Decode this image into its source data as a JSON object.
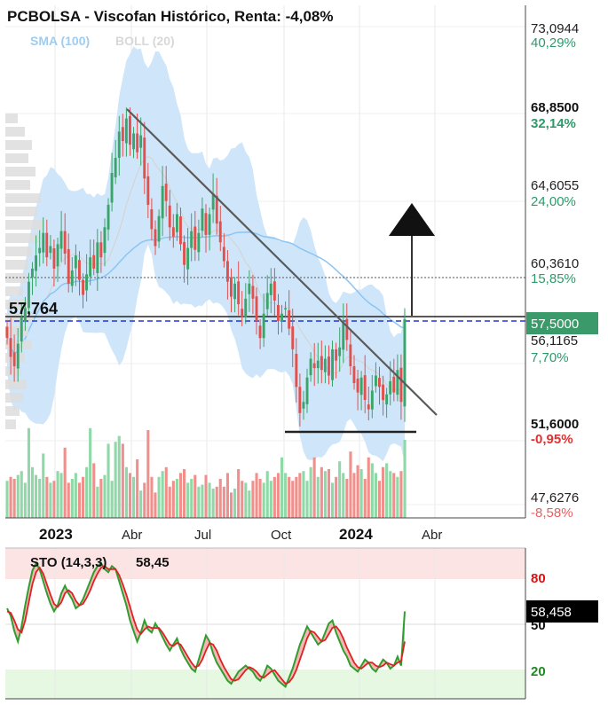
{
  "title": "PCBOLSA - Viscofan Histórico, Renta: -4,08%",
  "legend": {
    "sma": "SMA (100)",
    "boll": "BOLL (20)"
  },
  "colors": {
    "up": "#3aa56a",
    "down": "#e2504c",
    "bollinger_band": "#cfe6fa",
    "sma_line": "#8cc4f2",
    "trend_line": "#555555",
    "base_line": "#222222",
    "ref_dashed": "#2233dd",
    "current_line": "#222222",
    "vol_up": "#8fd8a8",
    "vol_down": "#f0908c",
    "sto_k": "#2f9e2f",
    "sto_d": "#dd2222",
    "sto_fill": "#f5b6b6",
    "sto_overbought": "#fde4e4",
    "sto_oversold": "#e6f8e2",
    "price_tag": "#3a9a6a",
    "sto_tag": "#000000"
  },
  "chart_data": [
    {
      "type": "candlestick",
      "x_ticks": [
        {
          "label": "2023",
          "date": "2023-01",
          "bold": true
        },
        {
          "label": "Abr",
          "date": "2023-04",
          "bold": false
        },
        {
          "label": "Jul",
          "date": "2023-07",
          "bold": false
        },
        {
          "label": "Oct",
          "date": "2023-10",
          "bold": false
        },
        {
          "label": "2024",
          "date": "2024-01",
          "bold": true
        },
        {
          "label": "Abr",
          "date": "2024-04",
          "bold": false
        }
      ],
      "y_ticks": [
        {
          "value": "73,0944",
          "pct": "40,29%",
          "pct_color": "#2e9a6a",
          "bold": false
        },
        {
          "value": "68,8500",
          "pct": "32,14%",
          "pct_color": "#2e9a6a",
          "bold": true
        },
        {
          "value": "64,6055",
          "pct": "24,00%",
          "pct_color": "#2e9a6a",
          "bold": false
        },
        {
          "value": "60,3610",
          "pct": "15,85%",
          "pct_color": "#2e9a6a",
          "bold": false
        },
        {
          "value": "56,1165",
          "pct": "7,70%",
          "pct_color": "#2e9a6a",
          "bold": false
        },
        {
          "value": "51,6000",
          "pct": "-0,95%",
          "pct_color": "#e23030",
          "bold": true
        },
        {
          "value": "47,6276",
          "pct": "-8,58%",
          "pct_color": "#e86060",
          "bold": false
        }
      ],
      "ylim": [
        47.6276,
        73.0944
      ],
      "last_price_tag": "57,5000",
      "reference_level_label": "57,764",
      "annotations": [
        "descending trendline",
        "horizontal support at 51,6000",
        "breakout arrow up"
      ],
      "close_series": [
        56.5,
        55.5,
        55.0,
        56.2,
        57.6,
        58.1,
        59.5,
        60.2,
        60.9,
        61.3,
        62.1,
        60.8,
        61.4,
        60.2,
        61.5,
        62.2,
        61.0,
        59.4,
        60.1,
        60.9,
        59.6,
        58.8,
        59.9,
        60.8,
        60.2,
        61.6,
        60.8,
        62.4,
        63.6,
        65.3,
        66.1,
        67.5,
        67.0,
        68.2,
        66.8,
        67.4,
        66.4,
        67.3,
        65.0,
        63.6,
        62.3,
        61.4,
        63.0,
        64.6,
        63.8,
        62.4,
        61.9,
        63.1,
        61.5,
        60.4,
        61.3,
        62.2,
        61.2,
        62.1,
        63.4,
        62.0,
        63.1,
        64.2,
        62.6,
        61.6,
        60.6,
        59.5,
        58.7,
        59.4,
        58.3,
        57.6,
        58.6,
        59.4,
        58.6,
        57.4,
        56.5,
        57.8,
        58.9,
        59.4,
        58.5,
        57.4,
        57.8,
        58.1,
        57.0,
        55.9,
        53.9,
        52.5,
        53.1,
        54.4,
        55.4,
        54.9,
        55.3,
        54.8,
        55.4,
        54.5,
        55.9,
        55.3,
        56.0,
        57.4,
        56.4,
        55.0,
        54.1,
        53.6,
        54.4,
        53.2,
        52.7,
        53.7,
        54.5,
        53.9,
        53.2,
        53.5,
        54.2,
        53.6,
        54.8,
        53.1,
        57.5
      ],
      "volume_series": [
        0.19,
        0.21,
        0.2,
        0.22,
        0.24,
        0.18,
        0.46,
        0.26,
        0.22,
        0.2,
        0.33,
        0.21,
        0.18,
        0.19,
        0.24,
        0.23,
        0.36,
        0.18,
        0.2,
        0.23,
        0.18,
        0.21,
        0.26,
        0.46,
        0.28,
        0.16,
        0.2,
        0.22,
        0.38,
        0.19,
        0.39,
        0.42,
        0.38,
        0.26,
        0.23,
        0.21,
        0.3,
        0.14,
        0.18,
        0.45,
        0.21,
        0.13,
        0.21,
        0.24,
        0.26,
        0.16,
        0.19,
        0.2,
        0.23,
        0.25,
        0.18,
        0.2,
        0.22,
        0.16,
        0.17,
        0.22,
        0.18,
        0.15,
        0.16,
        0.2,
        0.16,
        0.23,
        0.13,
        0.15,
        0.25,
        0.19,
        0.18,
        0.14,
        0.19,
        0.23,
        0.2,
        0.18,
        0.24,
        0.19,
        0.21,
        0.23,
        0.31,
        0.23,
        0.21,
        0.19,
        0.21,
        0.23,
        0.24,
        0.19,
        0.26,
        0.31,
        0.21,
        0.26,
        0.24,
        0.25,
        0.18,
        0.21,
        0.29,
        0.23,
        0.2,
        0.34,
        0.23,
        0.27,
        0.25,
        0.2,
        0.31,
        0.28,
        0.23,
        0.19,
        0.26,
        0.28,
        0.24,
        0.23,
        0.21,
        0.24,
        0.4
      ]
    },
    {
      "type": "line",
      "title": "STO (14,3,3)",
      "value_label": "58,45",
      "last_tag": "58,458",
      "ylim": [
        0,
        100
      ],
      "y_ticks": [
        {
          "value": "80",
          "color": "#dd1111"
        },
        {
          "value": "50",
          "color": "#111111"
        },
        {
          "value": "20",
          "color": "#1f8a1f"
        }
      ],
      "overbought": 80,
      "oversold": 20,
      "series": [
        {
          "values": [
            60,
            55,
            45,
            38,
            48,
            62,
            74,
            85,
            90,
            86,
            78,
            70,
            63,
            58,
            62,
            70,
            75,
            70,
            66,
            60,
            62,
            66,
            72,
            78,
            84,
            88,
            90,
            86,
            84,
            88,
            86,
            78,
            70,
            62,
            52,
            45,
            38,
            44,
            52,
            46,
            44,
            50,
            46,
            41,
            36,
            32,
            36,
            40,
            33,
            28,
            24,
            20,
            18,
            26,
            34,
            42,
            38,
            30,
            24,
            20,
            16,
            12,
            10,
            14,
            18,
            20,
            22,
            20,
            18,
            14,
            12,
            16,
            22,
            20,
            16,
            12,
            10,
            8,
            14,
            20,
            28,
            36,
            42,
            48,
            44,
            40,
            36,
            38,
            44,
            50,
            52,
            44,
            38,
            32,
            28,
            22,
            20,
            18,
            22,
            26,
            24,
            20,
            18,
            22,
            26,
            24,
            20,
            22,
            28,
            22,
            58
          ]
        },
        {
          "values": [
            58,
            57,
            52,
            46,
            44,
            52,
            64,
            76,
            84,
            87,
            83,
            76,
            69,
            63,
            61,
            64,
            70,
            72,
            70,
            65,
            62,
            63,
            67,
            72,
            78,
            83,
            87,
            88,
            86,
            86,
            86,
            82,
            76,
            69,
            61,
            53,
            46,
            43,
            46,
            48,
            47,
            47,
            47,
            44,
            40,
            36,
            35,
            37,
            36,
            32,
            28,
            24,
            21,
            22,
            26,
            32,
            37,
            36,
            32,
            26,
            21,
            17,
            13,
            12,
            13,
            16,
            19,
            21,
            20,
            18,
            15,
            14,
            16,
            18,
            19,
            16,
            13,
            10,
            11,
            14,
            19,
            26,
            33,
            40,
            45,
            44,
            41,
            38,
            39,
            43,
            47,
            48,
            45,
            40,
            34,
            29,
            24,
            21,
            20,
            22,
            24,
            24,
            22,
            21,
            22,
            24,
            23,
            22,
            24,
            25,
            38
          ]
        }
      ]
    }
  ]
}
